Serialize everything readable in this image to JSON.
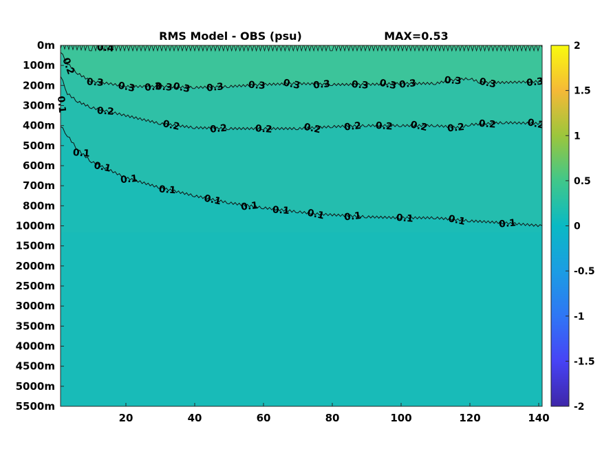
{
  "chart_data": {
    "type": "heatmap",
    "title": "RMS Model - OBS (psu)",
    "max_label": "MAX=0.53",
    "x_ticks": [
      "20",
      "40",
      "60",
      "80",
      "100",
      "120",
      "140"
    ],
    "x_tick_values": [
      20,
      40,
      60,
      80,
      100,
      120,
      140
    ],
    "xlim": [
      1,
      141
    ],
    "y_ticks": [
      "0m",
      "100m",
      "200m",
      "300m",
      "400m",
      "500m",
      "600m",
      "700m",
      "800m",
      "1000m",
      "1500m",
      "2000m",
      "2500m",
      "3000m",
      "3500m",
      "4000m",
      "4500m",
      "5000m",
      "5500m"
    ],
    "colorbar": {
      "ticks": [
        "2",
        "1.5",
        "1",
        "0.5",
        "0",
        "-0.5",
        "-1",
        "-1.5",
        "-2"
      ],
      "tick_values": [
        2,
        1.5,
        1,
        0.5,
        0,
        -0.5,
        -1,
        -1.5,
        -2
      ],
      "range": [
        -2,
        2
      ],
      "colormap": "parula"
    },
    "contours": [
      {
        "level": 0.4,
        "label": "0.4",
        "points": [
          [
            1,
            0
          ],
          [
            10,
            0.1
          ],
          [
            40,
            0.1
          ],
          [
            80,
            0.1
          ],
          [
            110,
            0.1
          ],
          [
            141,
            0.1
          ]
        ],
        "labels_at_x": [
          14
        ]
      },
      {
        "level": 0.3,
        "label": "0.3",
        "points": [
          [
            1,
            0.3
          ],
          [
            3,
            0.9
          ],
          [
            6,
            1.4
          ],
          [
            10,
            1.8
          ],
          [
            15,
            1.9
          ],
          [
            20,
            2.05
          ],
          [
            30,
            2.05
          ],
          [
            40,
            2.1
          ],
          [
            50,
            2.05
          ],
          [
            60,
            1.95
          ],
          [
            70,
            1.9
          ],
          [
            80,
            1.95
          ],
          [
            90,
            1.95
          ],
          [
            100,
            1.9
          ],
          [
            110,
            1.9
          ],
          [
            114,
            1.75
          ],
          [
            117,
            1.7
          ],
          [
            120,
            1.65
          ],
          [
            123,
            1.85
          ],
          [
            130,
            1.85
          ],
          [
            141,
            1.8
          ]
        ],
        "labels_at_x": [
          11,
          20,
          28,
          31,
          36,
          46,
          58,
          68,
          77,
          88,
          96,
          102,
          115,
          125,
          139
        ]
      },
      {
        "level": 0.2,
        "label": "0.2",
        "points": [
          [
            1,
            1.5
          ],
          [
            3,
            2.4
          ],
          [
            6,
            2.8
          ],
          [
            10,
            3.1
          ],
          [
            15,
            3.3
          ],
          [
            20,
            3.5
          ],
          [
            30,
            3.9
          ],
          [
            40,
            4.1
          ],
          [
            50,
            4.15
          ],
          [
            60,
            4.15
          ],
          [
            70,
            4.15
          ],
          [
            80,
            4.05
          ],
          [
            90,
            4.0
          ],
          [
            100,
            4.0
          ],
          [
            110,
            4.0
          ],
          [
            117,
            4.1
          ],
          [
            120,
            3.95
          ],
          [
            130,
            3.85
          ],
          [
            141,
            3.9
          ]
        ],
        "labels_at_x": [
          14,
          33,
          47,
          60,
          74,
          86,
          95,
          105,
          116,
          125,
          139
        ]
      },
      {
        "level": 0.1,
        "label": "0.1",
        "points": [
          [
            1,
            4.0
          ],
          [
            3,
            4.5
          ],
          [
            6,
            5.2
          ],
          [
            10,
            5.8
          ],
          [
            15,
            6.2
          ],
          [
            20,
            6.6
          ],
          [
            30,
            7.1
          ],
          [
            40,
            7.5
          ],
          [
            50,
            7.85
          ],
          [
            60,
            8.1
          ],
          [
            70,
            8.3
          ],
          [
            75,
            8.4
          ],
          [
            80,
            8.45
          ],
          [
            90,
            8.55
          ],
          [
            100,
            8.6
          ],
          [
            110,
            8.6
          ],
          [
            120,
            8.75
          ],
          [
            130,
            8.85
          ],
          [
            141,
            9.0
          ]
        ],
        "labels_at_x": [
          7,
          13,
          21,
          32,
          45,
          56,
          65,
          75,
          86,
          101,
          116,
          131
        ]
      }
    ],
    "side_labels": [
      "0.2",
      "0.1"
    ]
  }
}
